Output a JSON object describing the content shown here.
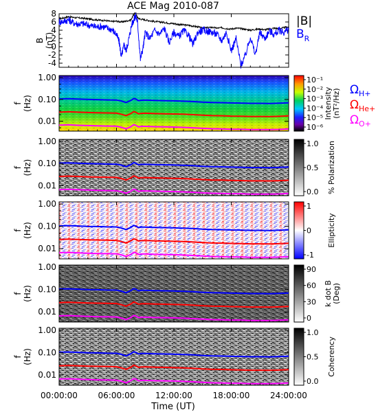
{
  "title": "ACE Mag 2010-087",
  "x_axis": {
    "label": "Time (UT)",
    "ticks": [
      "00:00:00",
      "06:00:00",
      "12:00:00",
      "18:00:00",
      "24:00:00"
    ]
  },
  "legends": {
    "b_total": "|B|",
    "b_radial": "B",
    "b_radial_sub": "R",
    "omega_h_sub": "H+",
    "omega_he_sub": "He+",
    "omega_o_sub": "O+",
    "omega_symbol": "Ω"
  },
  "colors": {
    "b_total": "#000000",
    "b_radial": "#0000ff",
    "omega_h": "#0000ff",
    "omega_he": "#ff0000",
    "omega_o": "#ff00ff"
  },
  "chart_data": [
    {
      "type": "line",
      "name": "B time series",
      "ylabel": "B",
      "ylabel_unit": "(nT)",
      "ylim": [
        -5,
        8
      ],
      "yticks": [
        "8",
        "6",
        "4",
        "2",
        "0",
        "-2",
        "-4"
      ],
      "xlim": [
        0,
        24
      ],
      "series": [
        {
          "name": "|B|",
          "x": [
            0,
            0.5,
            1,
            1.5,
            2,
            2.5,
            3,
            3.5,
            4,
            4.5,
            5,
            5.5,
            6,
            6.5,
            7,
            7.5,
            7.8,
            8,
            8.2,
            8.5,
            9,
            9.5,
            10,
            10.5,
            11,
            11.5,
            12,
            12.5,
            13,
            13.5,
            14,
            14.5,
            15,
            15.5,
            16,
            16.5,
            17,
            17.5,
            18,
            18.5,
            19,
            19.5,
            20,
            20.5,
            21,
            21.5,
            22,
            22.5,
            23,
            23.5,
            24
          ],
          "values": [
            6.8,
            7.0,
            7.3,
            7.1,
            7.0,
            6.9,
            6.8,
            6.6,
            6.5,
            6.4,
            6.3,
            6.1,
            6.2,
            6.0,
            6.2,
            6.5,
            7.8,
            8.2,
            7.0,
            6.7,
            6.5,
            6.3,
            6.1,
            6.0,
            5.9,
            5.7,
            5.6,
            5.4,
            5.3,
            5.2,
            5.0,
            4.8,
            4.5,
            4.6,
            4.7,
            4.5,
            4.6,
            4.4,
            4.3,
            4.5,
            4.4,
            4.2,
            4.0,
            4.2,
            4.3,
            4.1,
            4.3,
            4.5,
            4.4,
            4.6,
            4.8
          ]
        },
        {
          "name": "B_R",
          "x": [
            0,
            0.5,
            1,
            1.5,
            2,
            2.5,
            3,
            3.5,
            4,
            4.5,
            5,
            5.5,
            6,
            6.3,
            6.5,
            6.8,
            7,
            7.3,
            7.6,
            7.8,
            8,
            8.2,
            8.5,
            8.8,
            9,
            9.5,
            10,
            10.5,
            11,
            11.5,
            12,
            12.5,
            13,
            13.5,
            14,
            14.5,
            15,
            15.5,
            16,
            16.5,
            17,
            17.5,
            18,
            18.5,
            19,
            19.5,
            20,
            20.5,
            21,
            21.5,
            22,
            22.5,
            23,
            23.5,
            24
          ],
          "values": [
            6.0,
            6.2,
            6.5,
            5.8,
            5.5,
            5.6,
            5.3,
            5.0,
            4.8,
            5.0,
            4.5,
            4.2,
            3.0,
            1.0,
            -2.5,
            0.5,
            -1.0,
            2.0,
            5.5,
            6.5,
            7.5,
            6.0,
            -3.0,
            0.0,
            3.5,
            2.0,
            4.0,
            3.0,
            4.5,
            1.0,
            3.5,
            2.5,
            3.8,
            3.0,
            0.5,
            3.5,
            4.0,
            3.8,
            3.5,
            3.0,
            1.5,
            3.5,
            -1.0,
            2.0,
            -4.5,
            -2.0,
            2.5,
            -2.0,
            3.5,
            2.0,
            3.8,
            3.0,
            4.0,
            3.5,
            4.2
          ]
        }
      ]
    },
    {
      "type": "heatmap",
      "name": "Intensity",
      "ylabel": "f",
      "ylabel_unit": "(Hz)",
      "yticks": [
        "1.00",
        "0.10",
        "0.01"
      ],
      "colorbar_label": "Intensity",
      "colorbar_unit": "(nT²/Hz)",
      "colorbar_ticks": [
        "10⁻¹",
        "10⁻²",
        "10⁻³",
        "10⁻⁴",
        "10⁻⁵",
        "10⁻⁶"
      ],
      "colorbar_scale": "rainbow"
    },
    {
      "type": "heatmap",
      "name": "Polarization",
      "ylabel": "f",
      "ylabel_unit": "(Hz)",
      "yticks": [
        "1.00",
        "0.10",
        "0.01"
      ],
      "colorbar_label": "% Polarization",
      "colorbar_ticks": [
        "1.0",
        "0.5",
        "0.0"
      ],
      "colorbar_scale": "grayscale"
    },
    {
      "type": "heatmap",
      "name": "Ellipticity",
      "ylabel": "f",
      "ylabel_unit": "(Hz)",
      "yticks": [
        "1.00",
        "0.10",
        "0.01"
      ],
      "colorbar_label": "Ellipticity",
      "colorbar_ticks": [
        "1",
        "0",
        "-1"
      ],
      "colorbar_scale": "blue-white-red"
    },
    {
      "type": "heatmap",
      "name": "k dot B",
      "ylabel": "f",
      "ylabel_unit": "(Hz)",
      "yticks": [
        "1.00",
        "0.10",
        "0.01"
      ],
      "colorbar_label": "k dot B",
      "colorbar_unit": "(Deg)",
      "colorbar_ticks": [
        "90",
        "60",
        "30",
        "0"
      ],
      "colorbar_scale": "grayscale"
    },
    {
      "type": "heatmap",
      "name": "Coherency",
      "ylabel": "f",
      "ylabel_unit": "(Hz)",
      "yticks": [
        "1.00",
        "0.10",
        "0.01"
      ],
      "colorbar_label": "Coherency",
      "colorbar_ticks": [
        "1.0",
        "0.5",
        "0.0"
      ],
      "colorbar_scale": "grayscale"
    }
  ],
  "gyrofrequency_lines": {
    "x": [
      0,
      1,
      2,
      3,
      4,
      5,
      6,
      6.5,
      7,
      7.5,
      7.8,
      8,
      8.3,
      8.6,
      9,
      10,
      11,
      12,
      13,
      14,
      15,
      16,
      17,
      18,
      19,
      20,
      21,
      22,
      23,
      24
    ],
    "omega_h_hz": [
      0.105,
      0.108,
      0.104,
      0.1,
      0.098,
      0.095,
      0.094,
      0.085,
      0.072,
      0.09,
      0.11,
      0.105,
      0.088,
      0.092,
      0.093,
      0.09,
      0.088,
      0.086,
      0.083,
      0.08,
      0.075,
      0.072,
      0.071,
      0.069,
      0.068,
      0.066,
      0.066,
      0.065,
      0.067,
      0.07
    ],
    "omega_he_hz": [
      0.026,
      0.027,
      0.026,
      0.025,
      0.0245,
      0.024,
      0.0235,
      0.021,
      0.018,
      0.0225,
      0.0275,
      0.026,
      0.022,
      0.023,
      0.0233,
      0.0225,
      0.022,
      0.0215,
      0.021,
      0.02,
      0.0188,
      0.018,
      0.0178,
      0.0172,
      0.017,
      0.0165,
      0.0165,
      0.0163,
      0.0168,
      0.0175
    ],
    "omega_o_hz": [
      0.0066,
      0.0068,
      0.0065,
      0.0063,
      0.0061,
      0.006,
      0.0059,
      0.0053,
      0.0045,
      0.0056,
      0.0069,
      0.0066,
      0.0055,
      0.0058,
      0.0058,
      0.0056,
      0.0055,
      0.0054,
      0.0052,
      0.005,
      0.0047,
      0.0045,
      0.0044,
      0.0043,
      0.0043,
      0.0041,
      0.0041,
      0.0041,
      0.0042,
      0.0044
    ]
  }
}
